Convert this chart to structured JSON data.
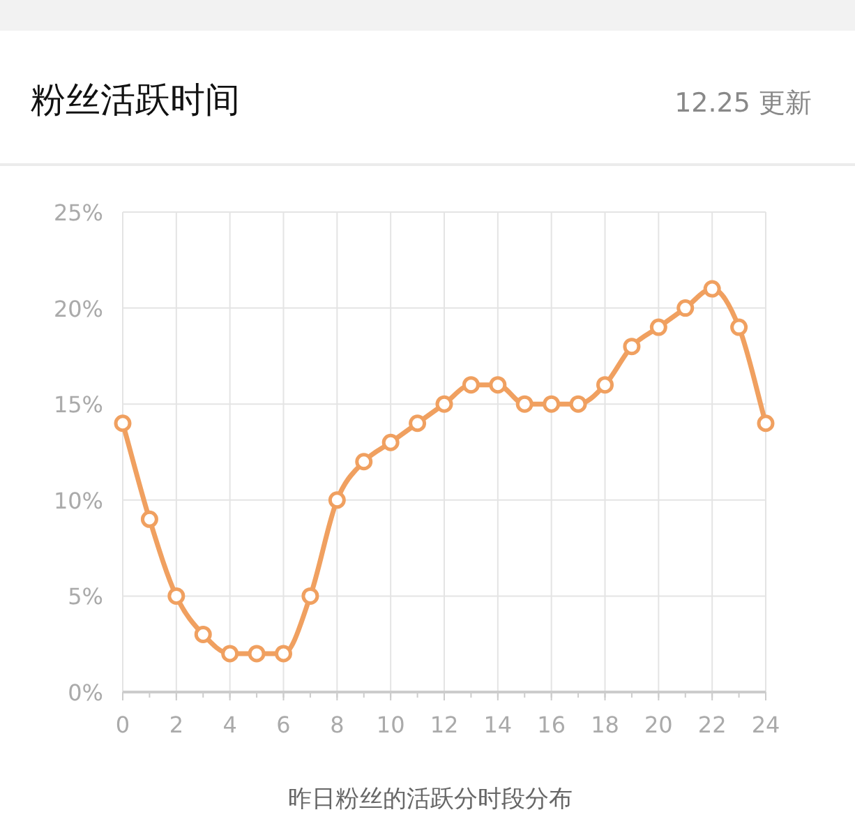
{
  "chart_data": {
    "type": "line",
    "title": "粉丝活跃时间",
    "subtitle": "12.25 更新",
    "xlabel": "昨日粉丝的活跃分时段分布",
    "x": [
      0,
      1,
      2,
      3,
      4,
      5,
      6,
      7,
      8,
      9,
      10,
      11,
      12,
      13,
      14,
      15,
      16,
      17,
      18,
      19,
      20,
      21,
      22,
      23,
      24
    ],
    "series": [
      {
        "color": "#f0a060",
        "values": [
          14,
          9,
          5,
          3,
          2,
          2,
          2,
          5,
          10,
          12,
          13,
          14,
          15,
          16,
          16,
          15,
          15,
          15,
          16,
          18,
          19,
          20,
          21,
          19,
          14
        ]
      }
    ],
    "xlim": [
      0,
      24
    ],
    "xticks": [
      0,
      2,
      4,
      6,
      8,
      10,
      12,
      14,
      16,
      18,
      20,
      22,
      24
    ],
    "ylim": [
      0,
      25
    ],
    "yticks": [
      {
        "value": 0,
        "label": "0%"
      },
      {
        "value": 5,
        "label": "5%"
      },
      {
        "value": 10,
        "label": "10%"
      },
      {
        "value": 15,
        "label": "15%"
      },
      {
        "value": 20,
        "label": "20%"
      },
      {
        "value": 25,
        "label": "25%"
      }
    ],
    "grid": true,
    "marker": "circle",
    "line_style": "solid"
  }
}
